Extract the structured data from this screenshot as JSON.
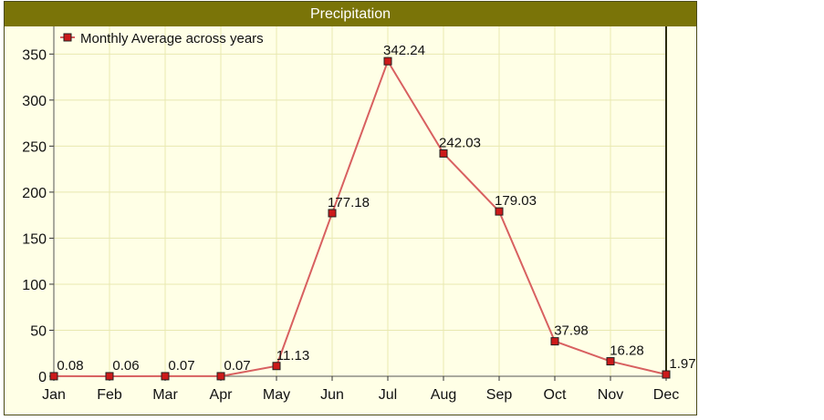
{
  "chart_data": {
    "type": "line",
    "title": "Precipitation",
    "categories": [
      "Jan",
      "Feb",
      "Mar",
      "Apr",
      "May",
      "Jun",
      "Jul",
      "Aug",
      "Sep",
      "Oct",
      "Nov",
      "Dec"
    ],
    "series": [
      {
        "name": "Monthly Average across years",
        "values": [
          0.08,
          0.06,
          0.07,
          0.07,
          11.13,
          177.18,
          342.24,
          242.03,
          179.03,
          37.98,
          16.28,
          1.97
        ],
        "data_labels": [
          "0.08",
          "0.06",
          "0.07",
          "0.07",
          "11.13",
          "177.18",
          "342.24",
          "242.03",
          "179.03",
          "37.98",
          "16.28",
          "1.97"
        ]
      }
    ],
    "ylim": [
      0,
      380
    ],
    "yticks": [
      0,
      50,
      100,
      150,
      200,
      250,
      300,
      350
    ],
    "xlabel": "",
    "ylabel": "",
    "grid": true,
    "legend_position": "top-left",
    "colors": {
      "title_bar": "#7a7408",
      "title_text": "#ffffff",
      "plot_background": "#ffffe6",
      "grid": "#e8e8b0",
      "line": "#d86060",
      "marker_fill": "#cc1a1a",
      "marker_stroke": "#222222"
    }
  }
}
